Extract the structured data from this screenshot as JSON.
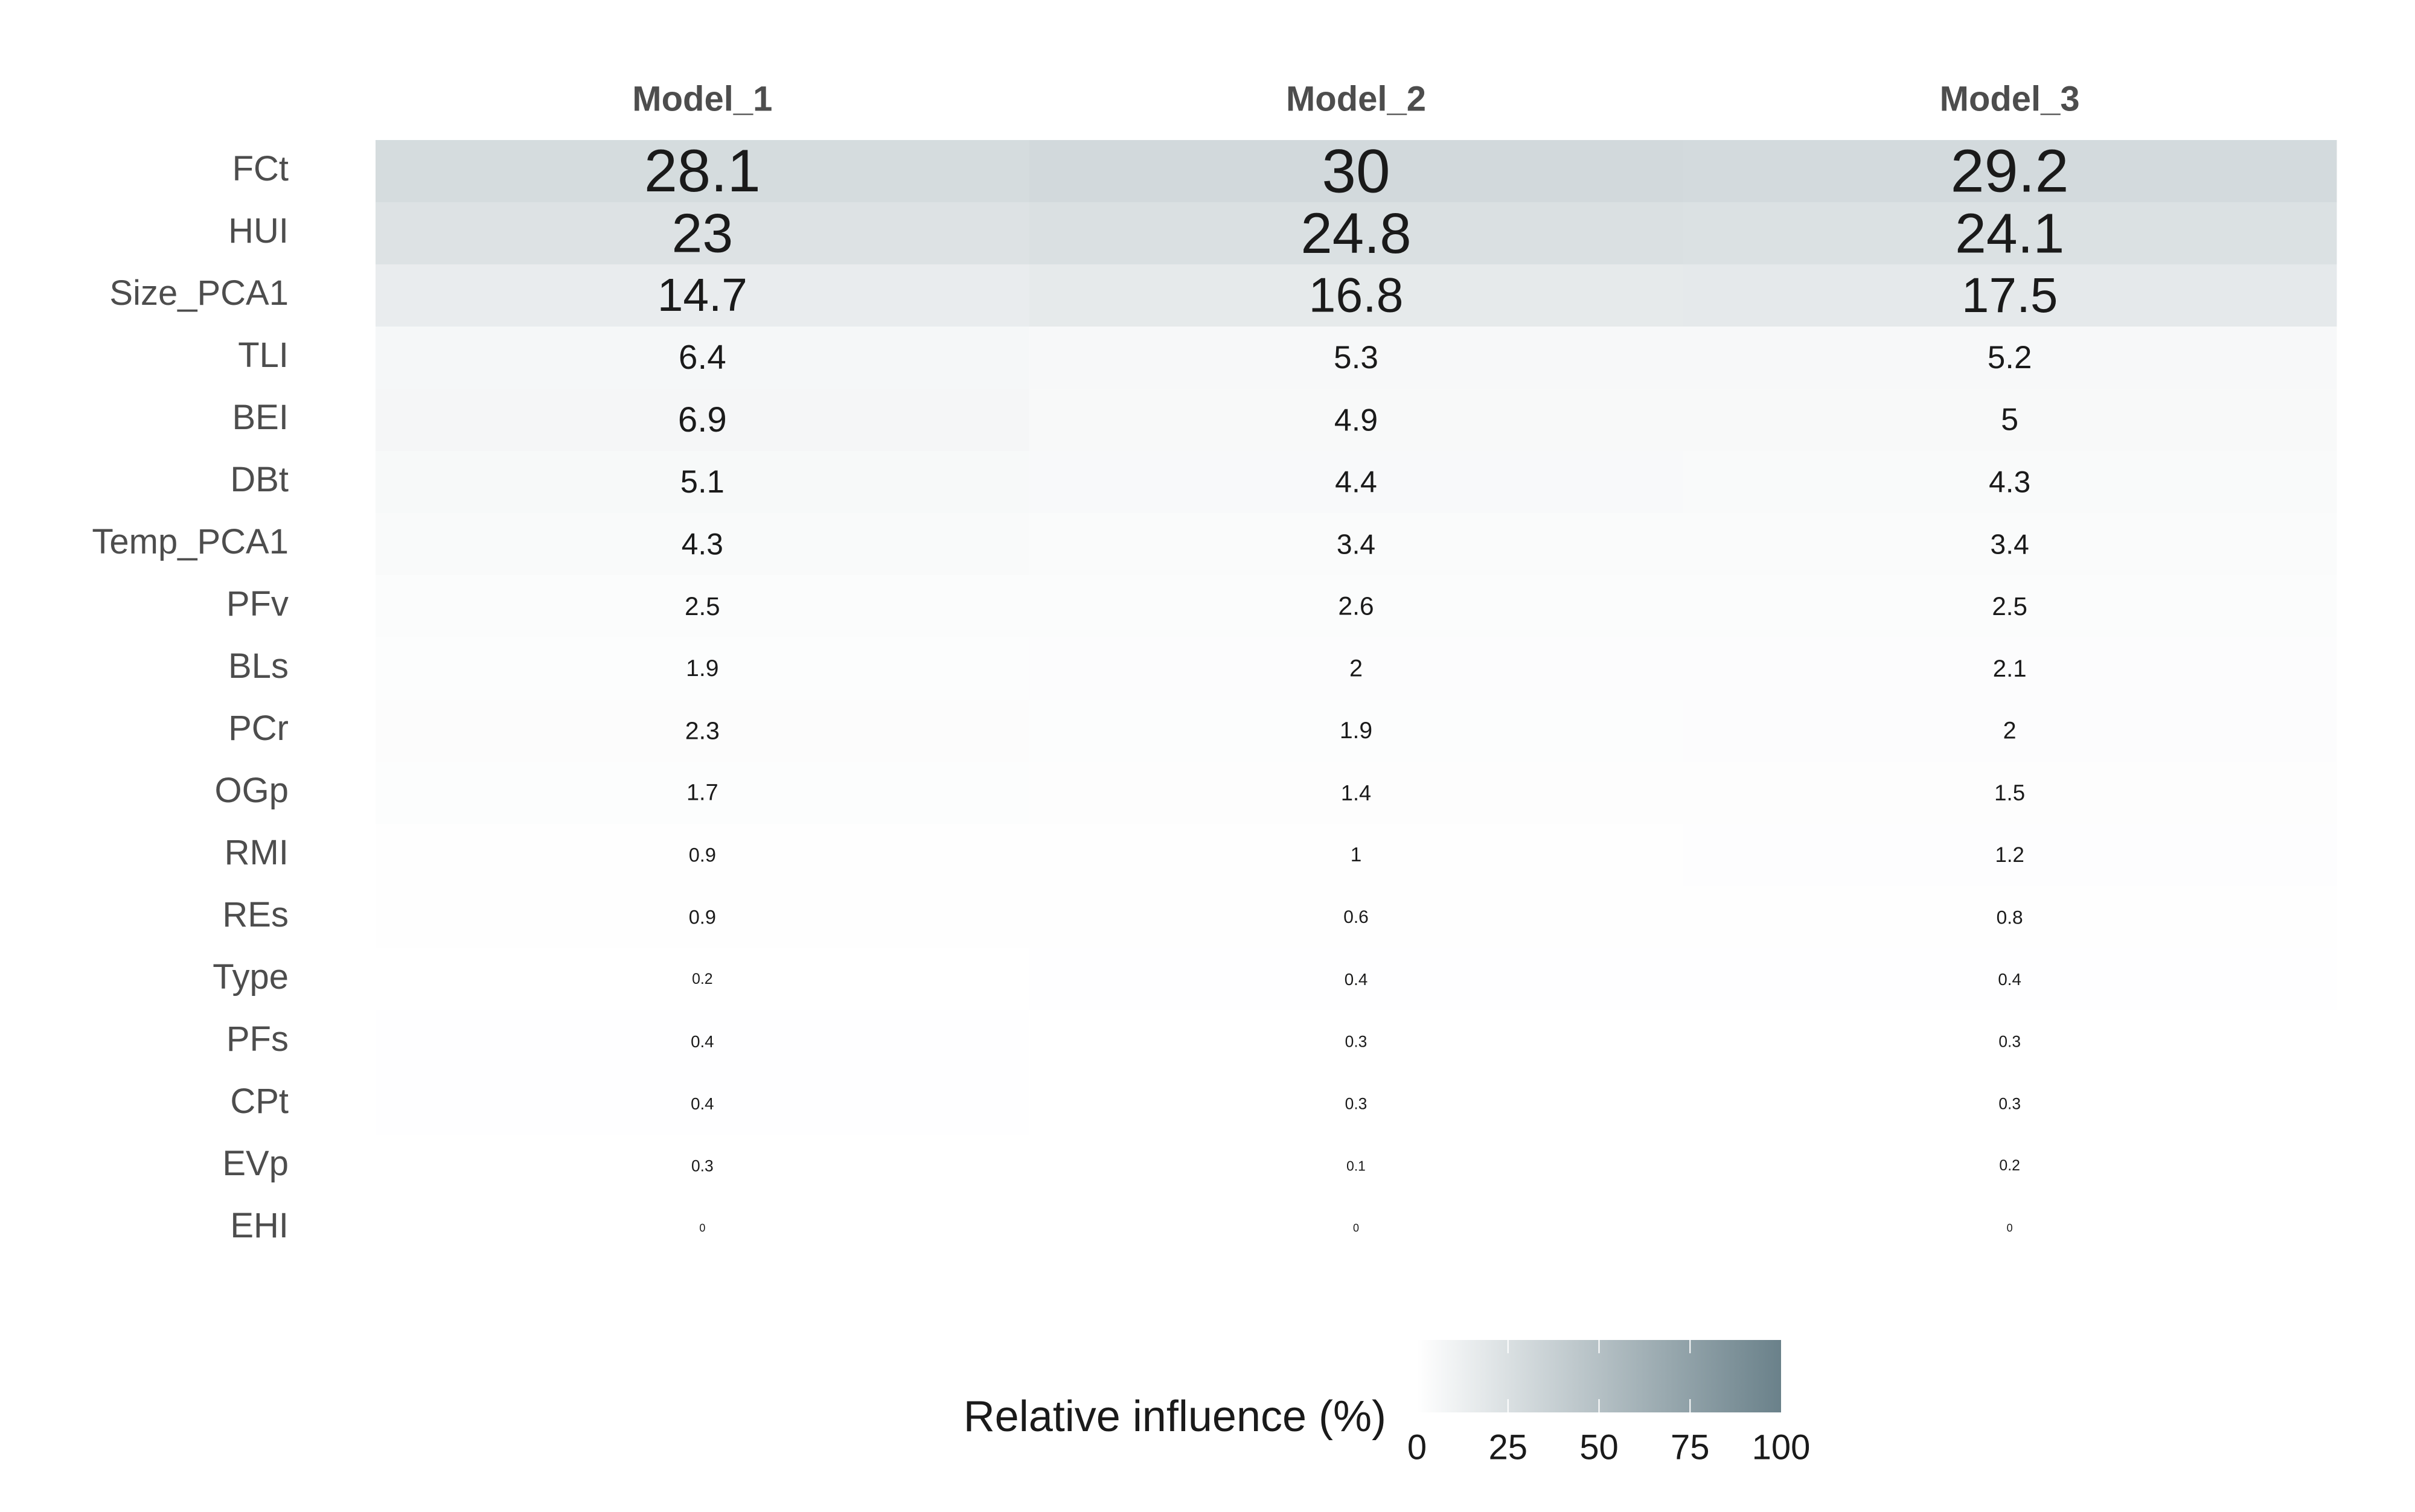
{
  "chart_data": {
    "type": "heatmap",
    "title": "",
    "xlabel": "",
    "ylabel": "",
    "columns": [
      "Model_1",
      "Model_2",
      "Model_3"
    ],
    "rows": [
      "FCt",
      "HUI",
      "Size_PCA1",
      "TLI",
      "BEI",
      "DBt",
      "Temp_PCA1",
      "PFv",
      "BLs",
      "PCr",
      "OGp",
      "RMI",
      "REs",
      "Type",
      "PFs",
      "CPt",
      "EVp",
      "EHI"
    ],
    "values": [
      [
        28.1,
        30,
        29.2
      ],
      [
        23,
        24.8,
        24.1
      ],
      [
        14.7,
        16.8,
        17.5
      ],
      [
        6.4,
        5.3,
        5.2
      ],
      [
        6.9,
        4.9,
        5
      ],
      [
        5.1,
        4.4,
        4.3
      ],
      [
        4.3,
        3.4,
        3.4
      ],
      [
        2.5,
        2.6,
        2.5
      ],
      [
        1.9,
        2,
        2.1
      ],
      [
        2.3,
        1.9,
        2
      ],
      [
        1.7,
        1.4,
        1.5
      ],
      [
        0.9,
        1,
        1.2
      ],
      [
        0.9,
        0.6,
        0.8
      ],
      [
        0.2,
        0.4,
        0.4
      ],
      [
        0.4,
        0.3,
        0.3
      ],
      [
        0.4,
        0.3,
        0.3
      ],
      [
        0.3,
        0.1,
        0.2
      ],
      [
        0,
        0,
        0
      ]
    ],
    "value_labels_shown": true,
    "label_size_scales_with_value": true,
    "legend": {
      "title": "Relative influence (%)",
      "type": "colorbar",
      "position": "bottom",
      "range": [
        0,
        100
      ],
      "ticks": [
        0,
        25,
        50,
        75,
        100
      ]
    },
    "colors": {
      "low": "#ffffff",
      "high": "#6a818a",
      "cell_text": "#1a1a1a",
      "axis_text": "#4d4d4d",
      "legend_text": "#1a1a1a"
    },
    "grid": false
  }
}
